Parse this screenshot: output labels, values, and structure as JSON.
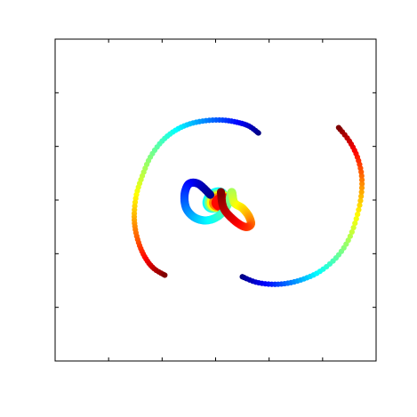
{
  "chart_data": {
    "type": "scatter",
    "title": "",
    "xlabel": "",
    "ylabel": "",
    "xlim": [
      -3,
      3
    ],
    "ylim": [
      -3,
      3
    ],
    "grid": false,
    "legend": "none",
    "tick_labels_shown": false,
    "colormap": "jet",
    "colormap_stops": [
      "#00007f",
      "#0000ff",
      "#0080ff",
      "#00ffff",
      "#80ff80",
      "#ffff00",
      "#ff8000",
      "#ff0000",
      "#7f0000"
    ],
    "series": [
      {
        "note_type": "outer-arc-left",
        "x": [
          0.8,
          0.62,
          0.4,
          0.13,
          -0.18,
          -0.48,
          -0.75,
          -1.0,
          -1.22,
          -1.37,
          -1.48,
          -1.52,
          -1.5,
          -1.42,
          -1.3,
          -1.15,
          -0.95
        ],
        "y": [
          1.25,
          1.38,
          1.45,
          1.49,
          1.48,
          1.42,
          1.3,
          1.1,
          0.8,
          0.45,
          0.1,
          -0.25,
          -0.55,
          -0.85,
          -1.1,
          -1.28,
          -1.4
        ]
      },
      {
        "note_type": "outer-arc-right",
        "x": [
          0.5,
          0.75,
          1.05,
          1.35,
          1.65,
          1.95,
          2.25,
          2.48,
          2.63,
          2.72,
          2.73,
          2.65,
          2.5,
          2.3
        ],
        "y": [
          -1.43,
          -1.53,
          -1.57,
          -1.55,
          -1.47,
          -1.33,
          -1.08,
          -0.75,
          -0.35,
          0.07,
          0.45,
          0.8,
          1.1,
          1.35
        ]
      },
      {
        "note_type": "inner-loop",
        "x": [
          -0.1,
          -0.32,
          -0.5,
          -0.58,
          -0.55,
          -0.4,
          -0.18,
          0.05,
          0.22,
          0.3,
          0.35,
          0.5,
          0.62,
          0.66,
          0.55,
          0.35,
          0.15,
          0.1
        ],
        "y": [
          0.1,
          0.3,
          0.3,
          0.1,
          -0.15,
          -0.32,
          -0.38,
          -0.3,
          -0.1,
          0.15,
          -0.05,
          -0.15,
          -0.3,
          -0.45,
          -0.5,
          -0.38,
          -0.15,
          0.15
        ]
      }
    ],
    "center_blob": {
      "colors": [
        "#00ffff",
        "#80ff80",
        "#ffff00",
        "#ff8000",
        "#ff0000"
      ]
    }
  }
}
